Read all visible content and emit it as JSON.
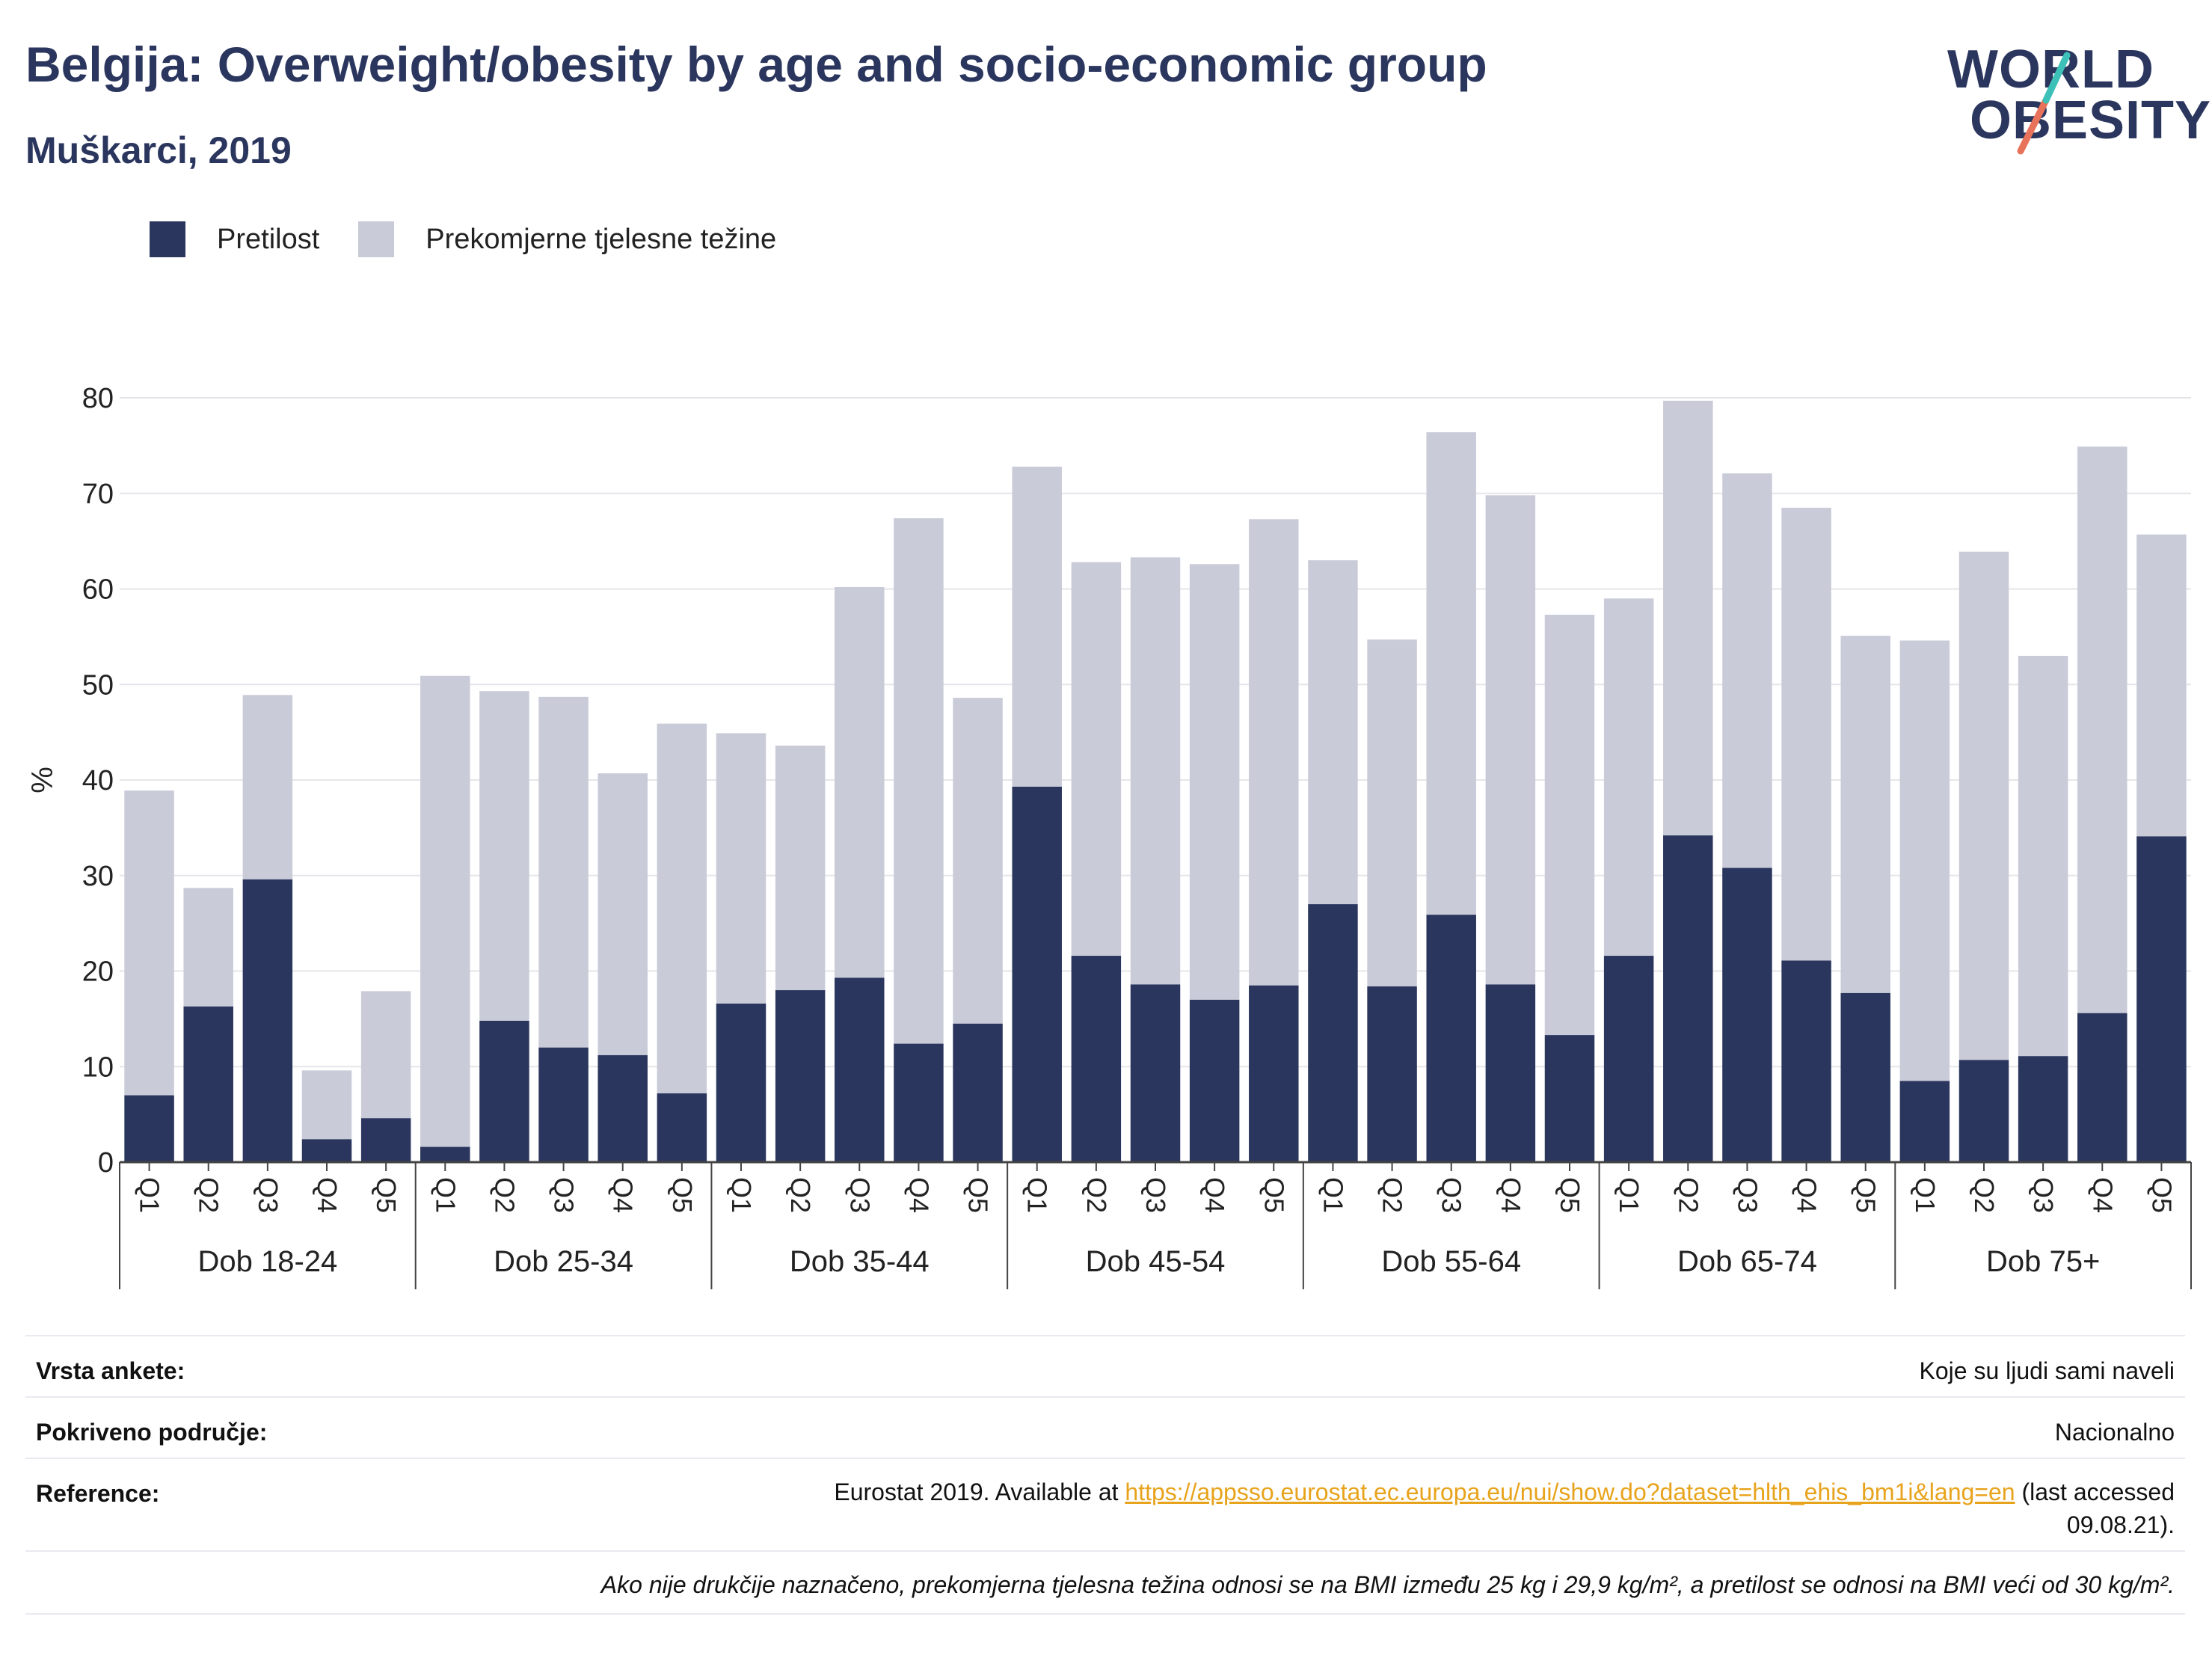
{
  "title": "Belgija: Overweight/obesity by age and socio-economic group",
  "subtitle": "Muškarci, 2019",
  "logo": {
    "line1": "WORLD",
    "line2": "OBESITY",
    "accent_colors": [
      "#e8735a",
      "#3cc0b8"
    ]
  },
  "legend": [
    {
      "label": "Pretilost",
      "color": "#2b365e"
    },
    {
      "label": "Prekomjerne tjelesne težine",
      "color": "#c9ccd8"
    }
  ],
  "chart_data": {
    "type": "bar",
    "stacked": true,
    "ylabel": "%",
    "ylim": [
      0,
      80
    ],
    "yticks": [
      0,
      10,
      20,
      30,
      40,
      50,
      60,
      70,
      80
    ],
    "grid": true,
    "legend_position": "top-left",
    "groups": [
      "Dob 18-24",
      "Dob 25-34",
      "Dob 35-44",
      "Dob 45-54",
      "Dob 55-64",
      "Dob 65-74",
      "Dob 75+"
    ],
    "categories": [
      "Q1",
      "Q2",
      "Q3",
      "Q4",
      "Q5"
    ],
    "series": [
      {
        "name": "Pretilost",
        "color": "#2b365e",
        "values": [
          [
            7.0,
            16.3,
            29.6,
            2.4,
            4.6
          ],
          [
            1.6,
            14.8,
            12.0,
            11.2,
            7.2
          ],
          [
            16.6,
            18.0,
            19.3,
            12.4,
            14.5
          ],
          [
            39.3,
            21.6,
            18.6,
            17.0,
            18.5
          ],
          [
            27.0,
            18.4,
            25.9,
            18.6,
            13.3
          ],
          [
            21.6,
            34.2,
            30.8,
            21.1,
            17.7
          ],
          [
            8.5,
            10.7,
            11.1,
            15.6,
            34.1
          ]
        ]
      },
      {
        "name": "Prekomjerne tjelesne težine",
        "color": "#c9ccd8",
        "values": [
          [
            31.9,
            12.4,
            19.3,
            7.2,
            13.3
          ],
          [
            49.3,
            34.5,
            36.7,
            29.5,
            38.7
          ],
          [
            28.3,
            25.6,
            40.9,
            55.0,
            34.1
          ],
          [
            33.5,
            41.2,
            44.7,
            45.6,
            48.8
          ],
          [
            36.0,
            36.3,
            50.5,
            51.2,
            44.0
          ],
          [
            37.4,
            45.5,
            41.3,
            47.4,
            37.4
          ],
          [
            46.1,
            53.2,
            41.9,
            59.3,
            31.6
          ]
        ]
      }
    ]
  },
  "info": {
    "survey_label": "Vrsta ankete:",
    "survey_value": "Koje su ljudi sami naveli",
    "area_label": "Pokriveno područje:",
    "area_value": "Nacionalno",
    "ref_label": "Reference:",
    "ref_prefix": "Eurostat 2019. Available at",
    "ref_link": "https://appsso.eurostat.ec.europa.eu/nui/show.do?dataset=hlth_ehis_bm1i&lang=en",
    "ref_suffix": "(last accessed",
    "ref_date": "09.08.21).",
    "note": "Ako nije drukčije naznačeno, prekomjerna tjelesna težina odnosi se na BMI između 25 kg i 29,9 kg/m², a pretilost se odnosi na BMI veći od 30 kg/m²."
  }
}
